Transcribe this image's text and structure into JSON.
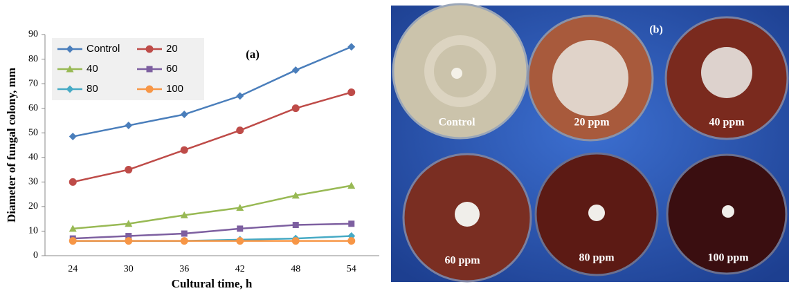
{
  "chart_data": {
    "type": "line",
    "annotation": "(a)",
    "x_label": "Cultural time, h",
    "y_label": "Diameter of fungal colony, mm",
    "categories": [
      "24",
      "30",
      "36",
      "42",
      "48",
      "54"
    ],
    "series": [
      {
        "name": "Control",
        "color": "#4a7ebb",
        "marker": "diamond",
        "values": [
          48.5,
          53,
          57.5,
          65,
          75.5,
          85
        ]
      },
      {
        "name": "20",
        "color": "#be4b48",
        "marker": "circle",
        "values": [
          30,
          35,
          43,
          51,
          60,
          66.5
        ]
      },
      {
        "name": "40",
        "color": "#98b954",
        "marker": "triangle",
        "values": [
          11,
          13,
          16.5,
          19.5,
          24.5,
          28.5
        ]
      },
      {
        "name": "60",
        "color": "#7d5fa0",
        "marker": "square",
        "values": [
          7,
          8,
          9,
          11,
          12.5,
          13
        ]
      },
      {
        "name": "80",
        "color": "#46aac5",
        "marker": "diamond",
        "values": [
          6,
          6,
          6,
          6.5,
          7,
          8
        ]
      },
      {
        "name": "100",
        "color": "#f79646",
        "marker": "circle",
        "values": [
          6,
          6,
          6,
          6,
          6,
          6
        ]
      }
    ],
    "ylim": [
      0,
      90
    ],
    "yticks": [
      0,
      10,
      20,
      30,
      40,
      50,
      60,
      70,
      80,
      90
    ],
    "legend": "upper left"
  },
  "photo_panel": {
    "label": "(b)",
    "plates": [
      "Control",
      "20 ppm",
      "40 ppm",
      "60 ppm",
      "80 ppm",
      "100 ppm"
    ]
  }
}
